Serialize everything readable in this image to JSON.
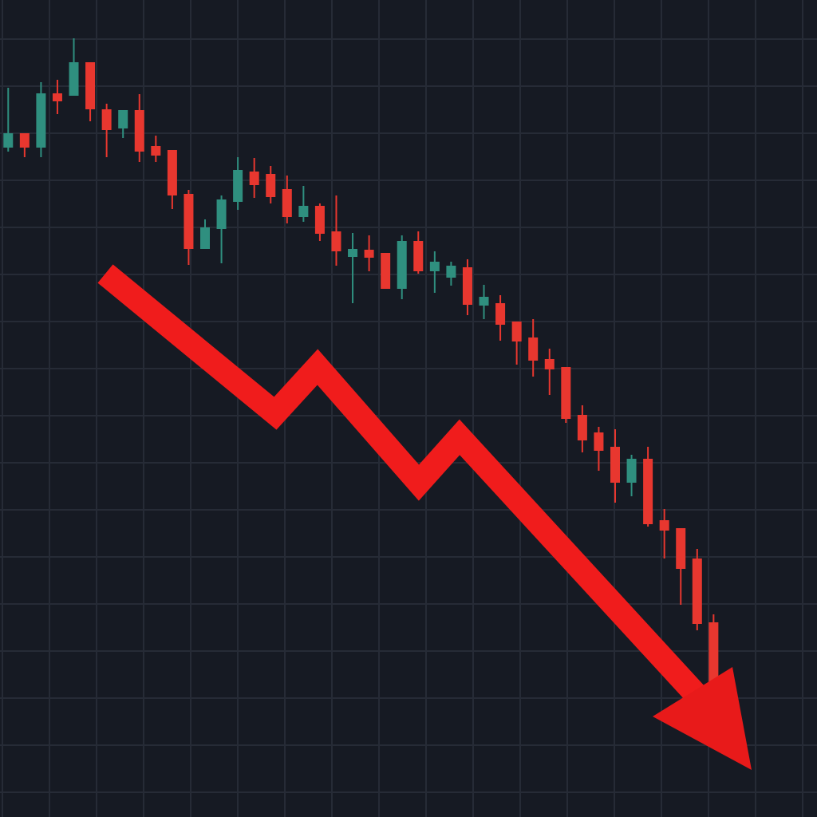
{
  "chart_data": {
    "type": "candlestick",
    "open": [
      839,
      857,
      839,
      907,
      904,
      946,
      887,
      863,
      886,
      841,
      836,
      781,
      712,
      737,
      771,
      809,
      806,
      787,
      752,
      766,
      734,
      702,
      711,
      707,
      662,
      722,
      684,
      676,
      689,
      641,
      644,
      621,
      601,
      574,
      564,
      504,
      482,
      464,
      419,
      449,
      372,
      362,
      324,
      244
    ],
    "high": [
      914,
      857,
      921,
      924,
      976,
      946,
      894,
      886,
      906,
      854,
      836,
      786,
      749,
      779,
      827,
      826,
      816,
      804,
      791,
      769,
      779,
      732,
      729,
      707,
      729,
      734,
      709,
      696,
      699,
      667,
      654,
      621,
      624,
      587,
      564,
      516,
      489,
      486,
      454,
      464,
      386,
      362,
      336,
      254
    ],
    "low": [
      834,
      827,
      827,
      881,
      904,
      872,
      827,
      851,
      821,
      821,
      762,
      692,
      712,
      694,
      761,
      776,
      769,
      744,
      746,
      722,
      691,
      644,
      684,
      662,
      649,
      681,
      657,
      666,
      629,
      624,
      597,
      567,
      552,
      529,
      494,
      457,
      434,
      394,
      402,
      364,
      324,
      266,
      234,
      164
    ],
    "close": [
      857,
      839,
      907,
      897,
      946,
      887,
      861,
      886,
      834,
      829,
      779,
      712,
      739,
      774,
      811,
      792,
      777,
      752,
      766,
      731,
      709,
      712,
      701,
      662,
      722,
      684,
      696,
      691,
      642,
      652,
      617,
      596,
      572,
      561,
      499,
      472,
      459,
      419,
      449,
      367,
      359,
      311,
      242,
      169
    ],
    "up_color": "#2f8f7f",
    "down_color": "#e8372f",
    "ylim": [
      0,
      1024
    ],
    "grid": true
  }
}
